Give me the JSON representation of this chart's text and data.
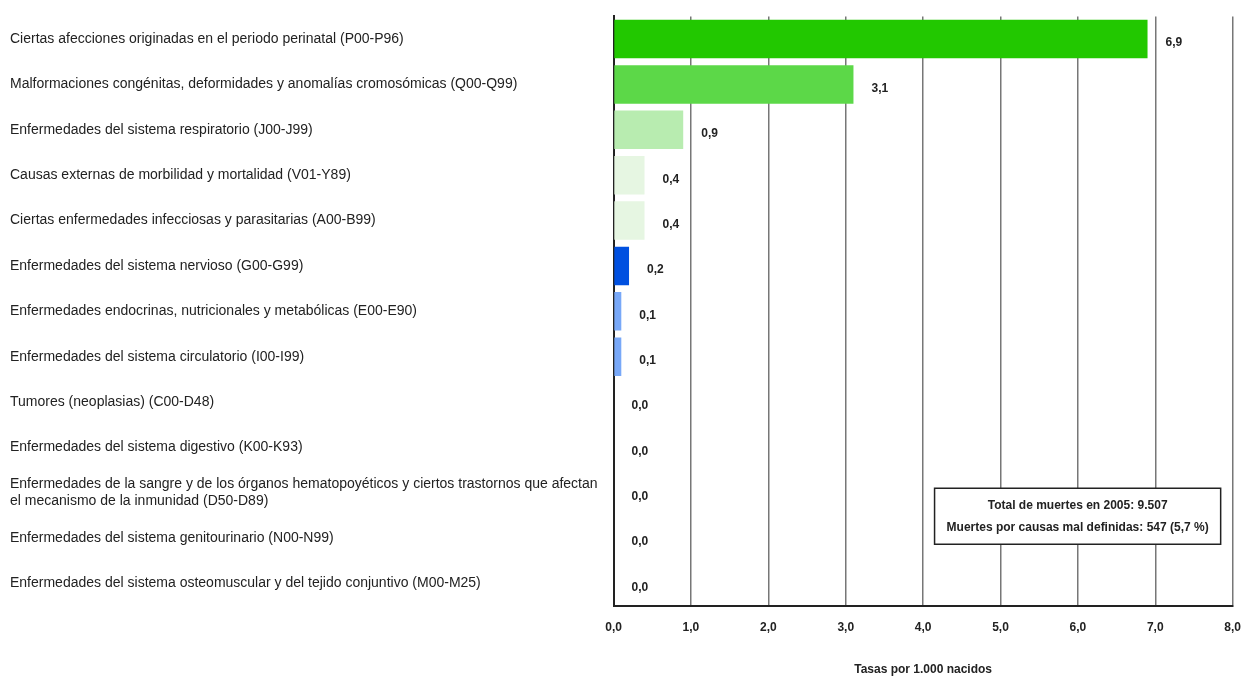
{
  "chart_data": {
    "type": "bar",
    "orientation": "horizontal",
    "categories": [
      "Ciertas afecciones originadas en el periodo perinatal (P00-P96)",
      "Malformaciones congénitas, deformidades y anomalías cromosómicas (Q00-Q99)",
      "Enfermedades del sistema respiratorio (J00-J99)",
      "Causas externas de morbilidad y mortalidad (V01-Y89)",
      "Ciertas enfermedades infecciosas y parasitarias (A00-B99)",
      "Enfermedades del sistema nervioso (G00-G99)",
      "Enfermedades endocrinas, nutricionales y metabólicas (E00-E90)",
      "Enfermedades del sistema circulatorio (I00-I99)",
      "Tumores (neoplasias) (C00-D48)",
      "Enfermedades del sistema digestivo (K00-K93)",
      "Enfermedades de la sangre y de los órganos hematopoyéticos y ciertos trastornos que afectan el mecanismo de la inmunidad (D50-D89)",
      "Enfermedades del sistema genitourinario (N00-N99)",
      "Enfermedades del sistema osteomuscular y del tejido conjuntivo (M00-M25)"
    ],
    "values": [
      6.9,
      3.1,
      0.9,
      0.4,
      0.4,
      0.2,
      0.1,
      0.1,
      0.0,
      0.0,
      0.0,
      0.0,
      0.0
    ],
    "value_labels": [
      "6,9",
      "3,1",
      "0,9",
      "0,4",
      "0,4",
      "0,2",
      "0,1",
      "0,1",
      "0,0",
      "0,0",
      "0,0",
      "0,0",
      "0,0"
    ],
    "colors": [
      "#22c800",
      "#5cd848",
      "#b8ecb0",
      "#e6f6e2",
      "#e6f6e2",
      "#0050e0",
      "#78a8f8",
      "#78a8f8",
      "#78a8f8",
      "#78a8f8",
      "#78a8f8",
      "#78a8f8",
      "#78a8f8"
    ],
    "xlim": [
      0,
      8
    ],
    "xticks": [
      {
        "value": 0,
        "label": "0,0"
      },
      {
        "value": 1,
        "label": "1,0"
      },
      {
        "value": 2,
        "label": "2,0"
      },
      {
        "value": 3,
        "label": "3,0"
      },
      {
        "value": 4,
        "label": "4,0"
      },
      {
        "value": 5,
        "label": "5,0"
      },
      {
        "value": 6,
        "label": "6,0"
      },
      {
        "value": 7,
        "label": "7,0"
      },
      {
        "value": 8,
        "label": "8,0"
      }
    ],
    "xlabel": "Tasas por 1.000 nacidos",
    "grid": "x",
    "legend": false,
    "annotations": [
      "Total de muertes en 2005: 9.507",
      "Muertes por causas mal definidas: 547 (5,7 %)"
    ]
  }
}
